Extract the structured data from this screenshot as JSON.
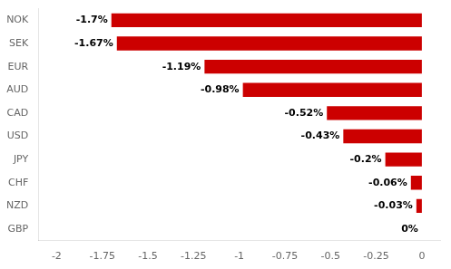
{
  "chart_data": {
    "type": "bar",
    "orientation": "horizontal",
    "categories": [
      "NOK",
      "SEK",
      "EUR",
      "AUD",
      "CAD",
      "USD",
      "JPY",
      "CHF",
      "NZD",
      "GBP"
    ],
    "values": [
      -1.7,
      -1.67,
      -1.19,
      -0.98,
      -0.52,
      -0.43,
      -0.2,
      -0.06,
      -0.03,
      0.0
    ],
    "value_labels": [
      "-1.7%",
      "-1.67%",
      "-1.19%",
      "-0.98%",
      "-0.52%",
      "-0.43%",
      "-0.2%",
      "-0.06%",
      "-0.03%",
      "0%"
    ],
    "data_labels": true,
    "color": "#cc0000",
    "xlim": [
      -2.1,
      0.1
    ],
    "xticks": [
      -2,
      -1.75,
      -1.5,
      -1.25,
      -1,
      -0.75,
      -0.5,
      -0.25,
      0
    ],
    "grid": false
  }
}
